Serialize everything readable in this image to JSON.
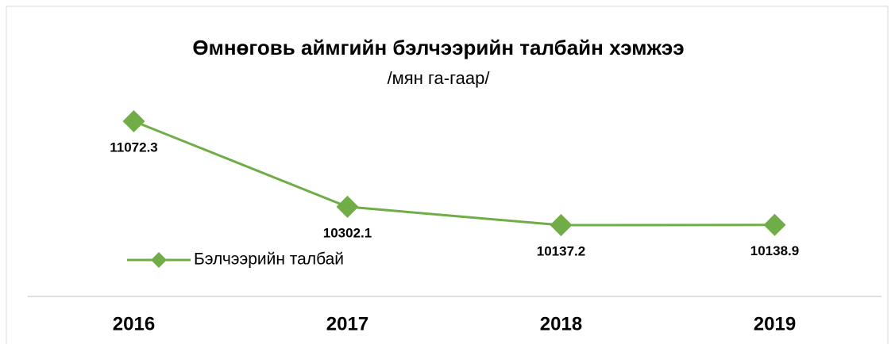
{
  "chart_data": {
    "type": "line",
    "title": "Өмнөговь аймгийн бэлчээрийн талбайн хэмжээ",
    "subtitle": "/мян га-гаар/",
    "categories": [
      "2016",
      "2017",
      "2018",
      "2019"
    ],
    "series": [
      {
        "name": "Бэлчээрийн талбай",
        "color": "#70ad47",
        "values": [
          11072.3,
          10302.1,
          10137.2,
          10138.9
        ]
      }
    ],
    "legend": "left"
  }
}
